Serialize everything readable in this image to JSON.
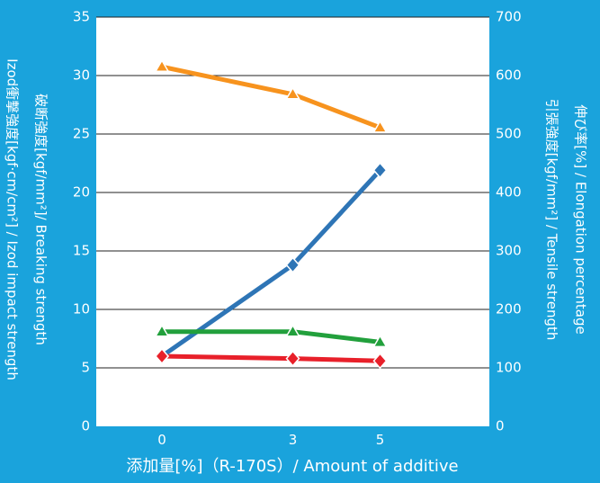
{
  "chart_data": {
    "type": "line",
    "x": [
      0,
      3,
      5
    ],
    "xlabel": "添加量[%]（R-170S）/ Amount of additive",
    "y_left": {
      "ylim": [
        0,
        35
      ],
      "ticks": [
        "0",
        "5",
        "10",
        "15",
        "20",
        "25",
        "30",
        "35"
      ],
      "label_lines": [
        "破断強度[kgf/mm²]/ Breaking strength",
        "Izod衝撃強度[kgf·cm/cm²] / Izod impact strength"
      ]
    },
    "y_right": {
      "ylim": [
        0,
        700
      ],
      "ticks": [
        "0",
        "100",
        "200",
        "300",
        "400",
        "500",
        "600",
        "700"
      ],
      "label_lines": [
        "伸び率[%] / Elongation percentage",
        "引張強度[kgf/mm²] / Tensile strength"
      ]
    },
    "series": [
      {
        "color": "#f7931e",
        "axis": "right",
        "marker": "triangle",
        "values": [
          615,
          568,
          511
        ]
      },
      {
        "color": "#2e75b6",
        "axis": "left",
        "marker": "diamond",
        "values": [
          6.0,
          13.8,
          21.9
        ]
      },
      {
        "color": "#22a03c",
        "axis": "left",
        "marker": "triangle",
        "values": [
          8.1,
          8.1,
          7.2
        ]
      },
      {
        "color": "#e8202a",
        "axis": "left",
        "marker": "diamond",
        "values": [
          6.0,
          5.8,
          5.6
        ]
      }
    ],
    "grid": true
  }
}
